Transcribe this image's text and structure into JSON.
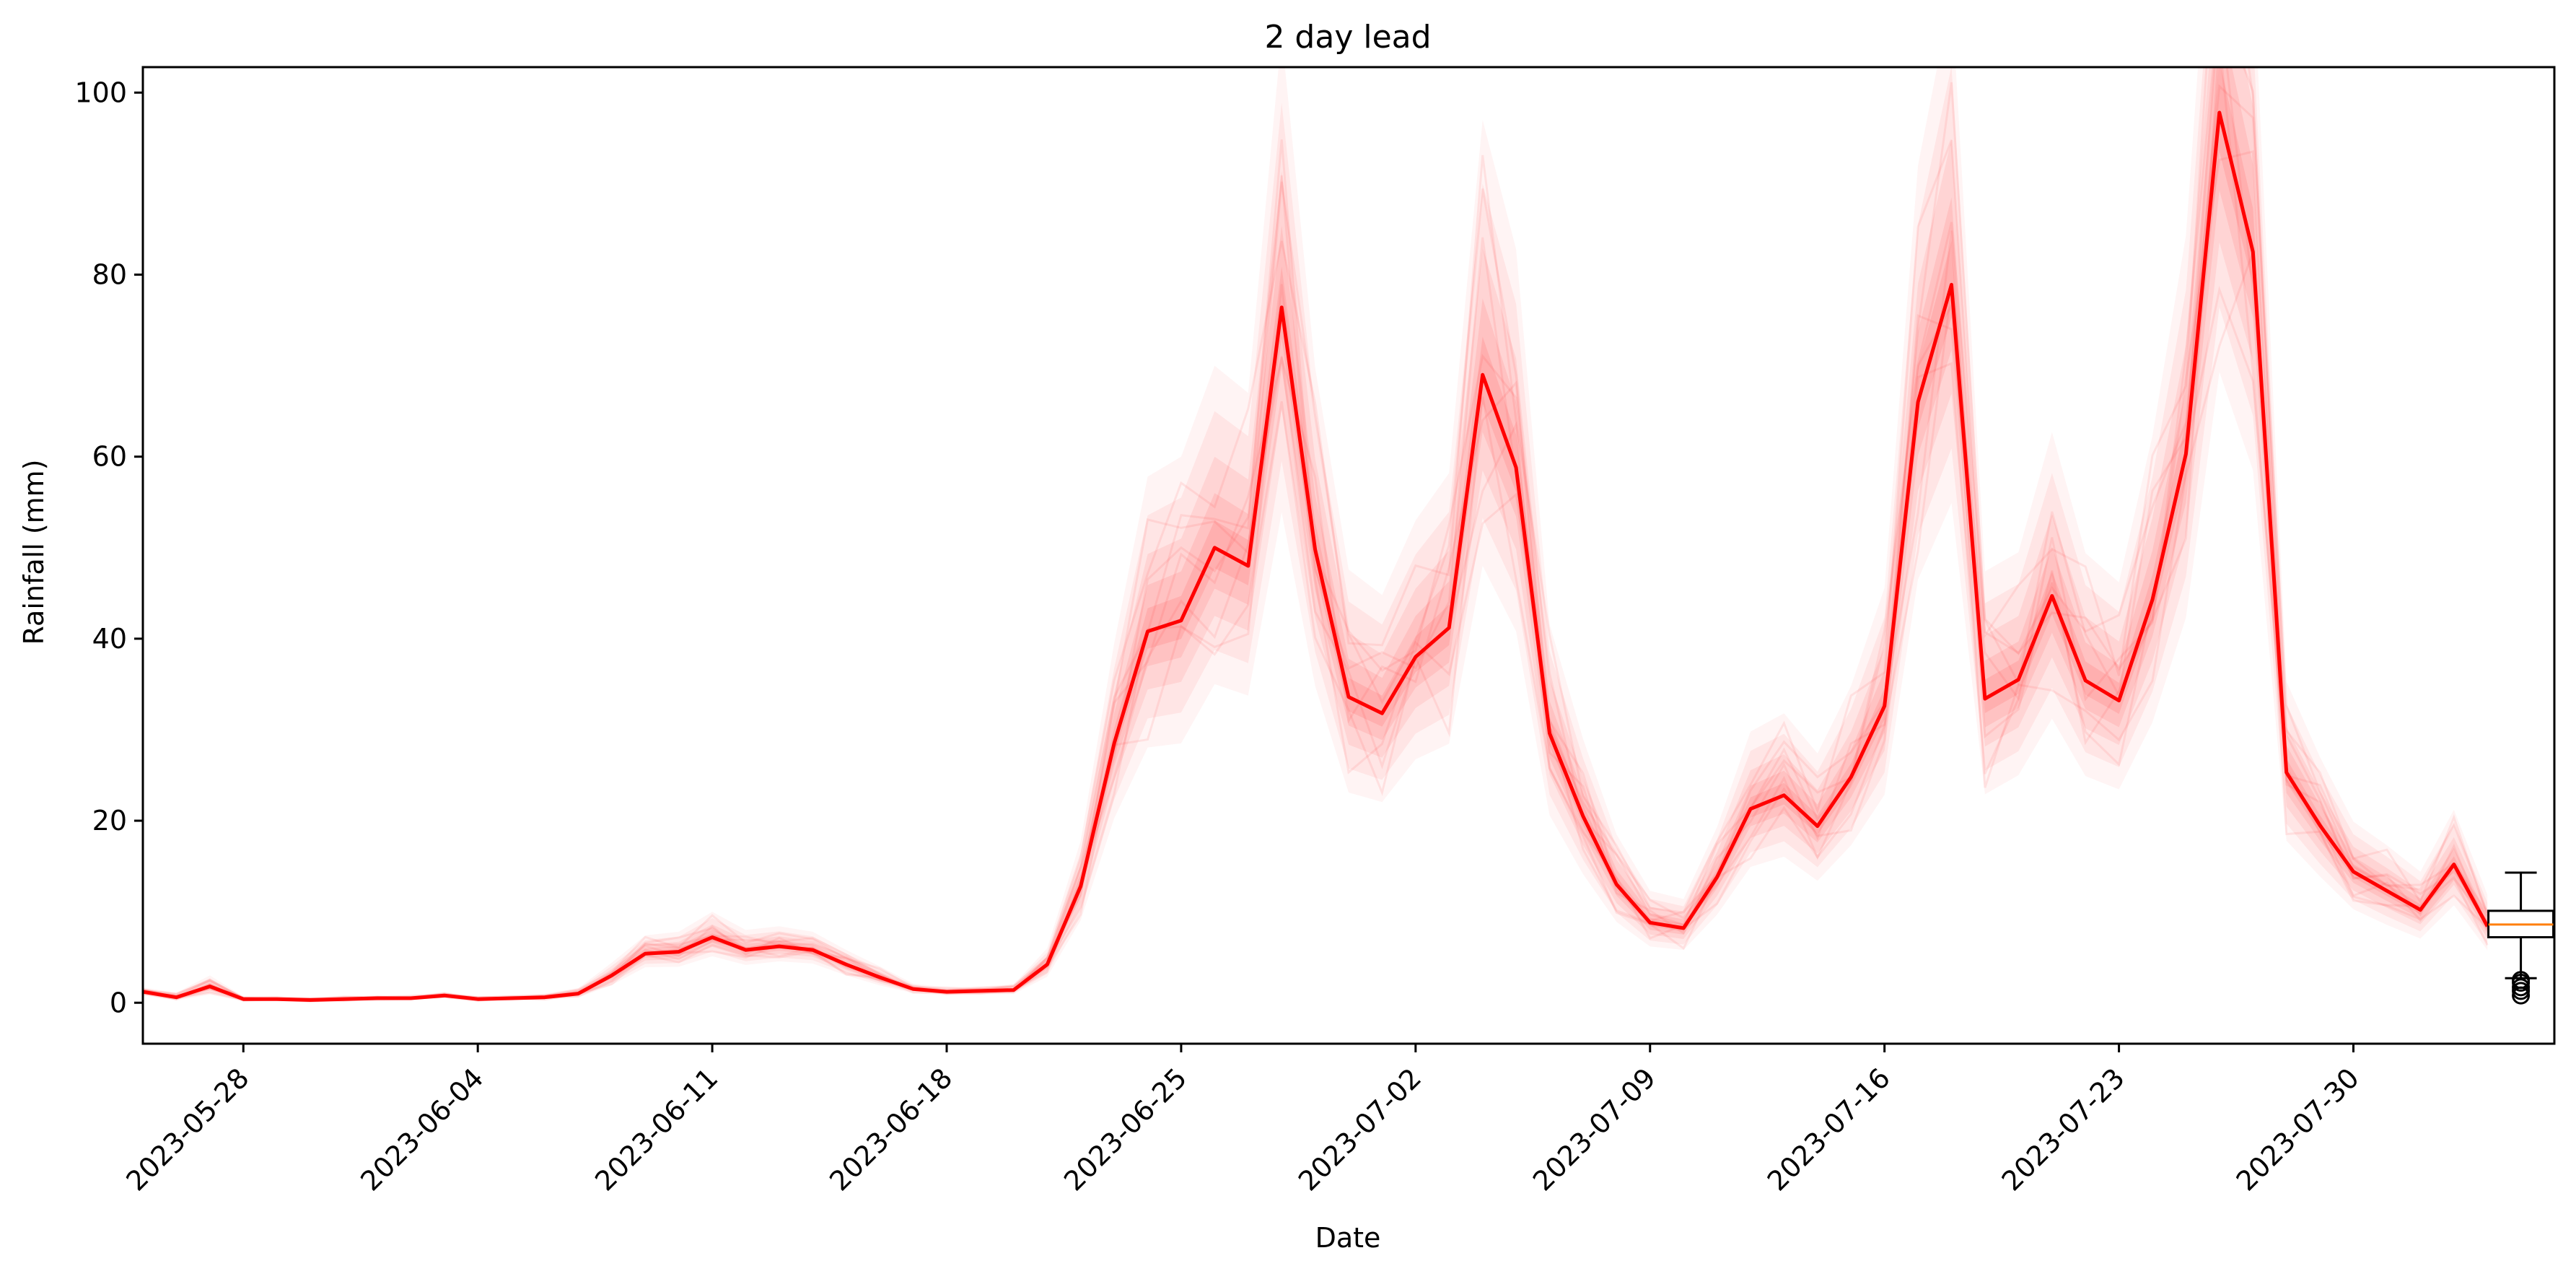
{
  "chart_data": {
    "type": "line",
    "title": "2 day lead",
    "xlabel": "Date",
    "ylabel": "Rainfall (mm)",
    "xlim": [
      "2023-05-25",
      "2023-08-05"
    ],
    "ylim": [
      -4.5,
      102.8
    ],
    "yticks": [
      0,
      20,
      40,
      60,
      80,
      100
    ],
    "xticks": [
      "2023-05-28",
      "2023-06-04",
      "2023-06-11",
      "2023-06-18",
      "2023-06-25",
      "2023-07-02",
      "2023-07-09",
      "2023-07-16",
      "2023-07-23",
      "2023-07-30"
    ],
    "grid": false,
    "series": [
      {
        "color": "#ff0000",
        "x": [
          "2023-05-25",
          "2023-05-26",
          "2023-05-27",
          "2023-05-28",
          "2023-05-29",
          "2023-05-30",
          "2023-05-31",
          "2023-06-01",
          "2023-06-02",
          "2023-06-03",
          "2023-06-04",
          "2023-06-05",
          "2023-06-06",
          "2023-06-07",
          "2023-06-08",
          "2023-06-09",
          "2023-06-10",
          "2023-06-11",
          "2023-06-12",
          "2023-06-13",
          "2023-06-14",
          "2023-06-15",
          "2023-06-16",
          "2023-06-17",
          "2023-06-18",
          "2023-06-19",
          "2023-06-20",
          "2023-06-21",
          "2023-06-22",
          "2023-06-23",
          "2023-06-24",
          "2023-06-25",
          "2023-06-26",
          "2023-06-27",
          "2023-06-28",
          "2023-06-29",
          "2023-06-30",
          "2023-07-01",
          "2023-07-02",
          "2023-07-03",
          "2023-07-04",
          "2023-07-05",
          "2023-07-06",
          "2023-07-07",
          "2023-07-08",
          "2023-07-09",
          "2023-07-10",
          "2023-07-11",
          "2023-07-12",
          "2023-07-13",
          "2023-07-14",
          "2023-07-15",
          "2023-07-16",
          "2023-07-17",
          "2023-07-18",
          "2023-07-19",
          "2023-07-20",
          "2023-07-21",
          "2023-07-22",
          "2023-07-23",
          "2023-07-24",
          "2023-07-25",
          "2023-07-26",
          "2023-07-27",
          "2023-07-28",
          "2023-07-29",
          "2023-07-30",
          "2023-07-31",
          "2023-08-01",
          "2023-08-02",
          "2023-08-03"
        ],
        "values": [
          1.2,
          0.6,
          1.8,
          0.4,
          0.4,
          0.3,
          0.4,
          0.5,
          0.5,
          0.8,
          0.4,
          0.5,
          0.6,
          1.0,
          3.0,
          5.4,
          5.6,
          7.2,
          5.8,
          6.2,
          5.8,
          4.2,
          2.8,
          1.5,
          1.2,
          1.3,
          1.4,
          4.2,
          12.8,
          28.5,
          40.8,
          42.0,
          50.0,
          48.0,
          76.4,
          49.8,
          33.6,
          31.8,
          38.0,
          41.2,
          69.0,
          58.8,
          29.6,
          20.5,
          13.0,
          8.8,
          8.2,
          13.8,
          21.3,
          22.8,
          19.4,
          24.8,
          32.6,
          66.0,
          78.9,
          33.4,
          35.5,
          44.7,
          35.4,
          33.2,
          44.3,
          60.3,
          97.8,
          82.5,
          25.3,
          19.5,
          14.4,
          12.3,
          10.2,
          15.2,
          8.4
        ]
      }
    ],
    "ensemble": {
      "color": "#ff0000",
      "description_bands": "shaded red spread",
      "spread": [
        0.5,
        0.5,
        1.2,
        0.3,
        0.3,
        0.3,
        0.3,
        0.3,
        0.3,
        0.4,
        0.3,
        0.3,
        0.4,
        0.6,
        1.4,
        2.0,
        2.2,
        2.8,
        2.2,
        2.2,
        2.0,
        1.6,
        1.2,
        0.6,
        0.5,
        0.5,
        0.6,
        1.8,
        5.0,
        11.0,
        17.0,
        18.0,
        20.0,
        19.0,
        30.0,
        20.0,
        14.0,
        13.0,
        15.0,
        17.0,
        28.0,
        24.0,
        12.0,
        8.5,
        5.5,
        3.5,
        3.2,
        5.5,
        8.5,
        9.0,
        8.0,
        10.0,
        13.0,
        26.0,
        32.0,
        14.0,
        14.0,
        18.0,
        14.0,
        13.0,
        18.0,
        24.0,
        38.0,
        32.0,
        10.0,
        7.5,
        5.5,
        5.0,
        4.2,
        6.0,
        3.5
      ]
    },
    "boxplot": {
      "x": "2023-08-04",
      "q1": 7.2,
      "median": 8.6,
      "q3": 10.1,
      "whisker_low": 2.7,
      "whisker_high": 14.3,
      "outliers": [
        0.8,
        1.3,
        1.7,
        2.2,
        2.5
      ],
      "box_color": "#000000",
      "median_color": "#ff7f0e"
    }
  }
}
